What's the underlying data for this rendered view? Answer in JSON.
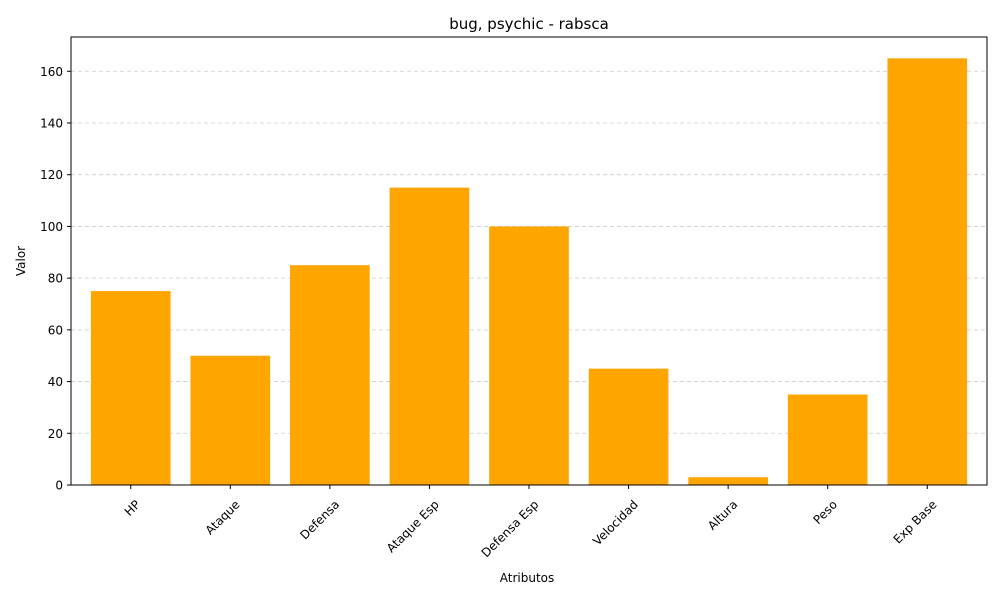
{
  "chart_data": {
    "type": "bar",
    "title": "bug, psychic - rabsca",
    "xlabel": "Atributos",
    "ylabel": "Valor",
    "categories": [
      "HP",
      "Ataque",
      "Defensa",
      "Ataque Esp",
      "Defensa Esp",
      "Velocidad",
      "Altura",
      "Peso",
      "Exp Base"
    ],
    "values": [
      75,
      50,
      85,
      115,
      100,
      45,
      3,
      35,
      165
    ],
    "ylim": [
      0,
      173.25
    ],
    "yticks": [
      0,
      20,
      40,
      60,
      80,
      100,
      120,
      140,
      160
    ],
    "grid": "y-dashed",
    "bar_color": "#FFA500",
    "grid_color": "#cccccc"
  }
}
